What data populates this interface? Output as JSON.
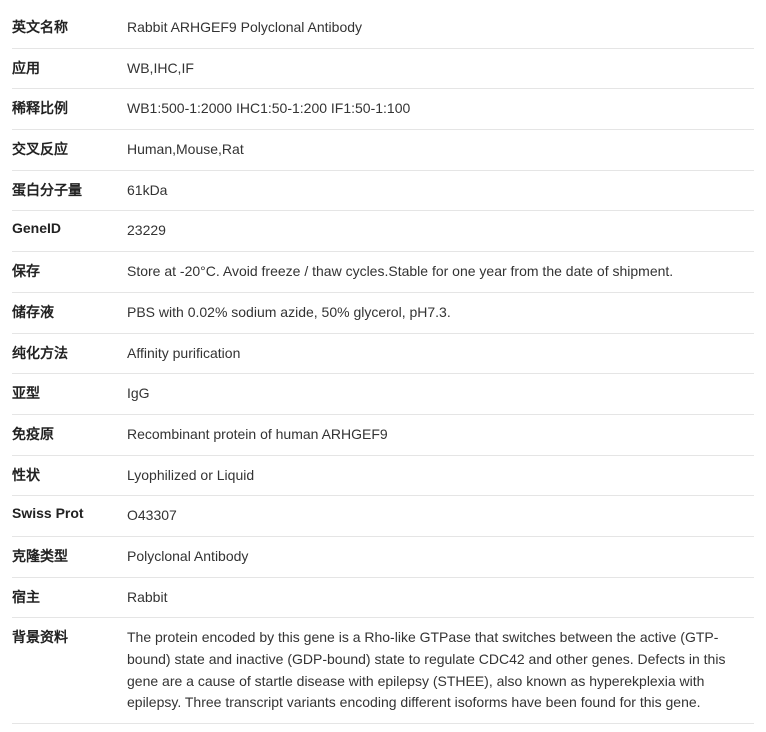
{
  "rows": [
    {
      "label": "英文名称",
      "value": "Rabbit ARHGEF9 Polyclonal Antibody"
    },
    {
      "label": "应用",
      "value": "WB,IHC,IF"
    },
    {
      "label": "稀释比例",
      "value": "WB1:500-1:2000 IHC1:50-1:200 IF1:50-1:100"
    },
    {
      "label": "交叉反应",
      "value": "Human,Mouse,Rat"
    },
    {
      "label": "蛋白分子量",
      "value": "61kDa"
    },
    {
      "label": "GeneID",
      "value": "23229"
    },
    {
      "label": "保存",
      "value": "Store at -20°C. Avoid freeze / thaw cycles.Stable for one year from the date of shipment."
    },
    {
      "label": "储存液",
      "value": "PBS with 0.02% sodium azide, 50% glycerol, pH7.3."
    },
    {
      "label": "纯化方法",
      "value": "Affinity purification"
    },
    {
      "label": "亚型",
      "value": "IgG"
    },
    {
      "label": "免疫原",
      "value": "Recombinant protein of human ARHGEF9"
    },
    {
      "label": "性状",
      "value": "Lyophilized or Liquid"
    },
    {
      "label": "Swiss Prot",
      "value": "O43307"
    },
    {
      "label": "克隆类型",
      "value": "Polyclonal Antibody"
    },
    {
      "label": "宿主",
      "value": "Rabbit"
    },
    {
      "label": "背景资料",
      "value": "The protein encoded by this gene is a Rho-like GTPase that switches between the active (GTP-bound) state and inactive (GDP-bound) state to regulate CDC42 and other genes. Defects in this gene are a cause of startle disease with epilepsy (STHEE), also known as hyperekplexia with epilepsy. Three transcript variants encoding different isoforms have been found for this gene."
    }
  ]
}
